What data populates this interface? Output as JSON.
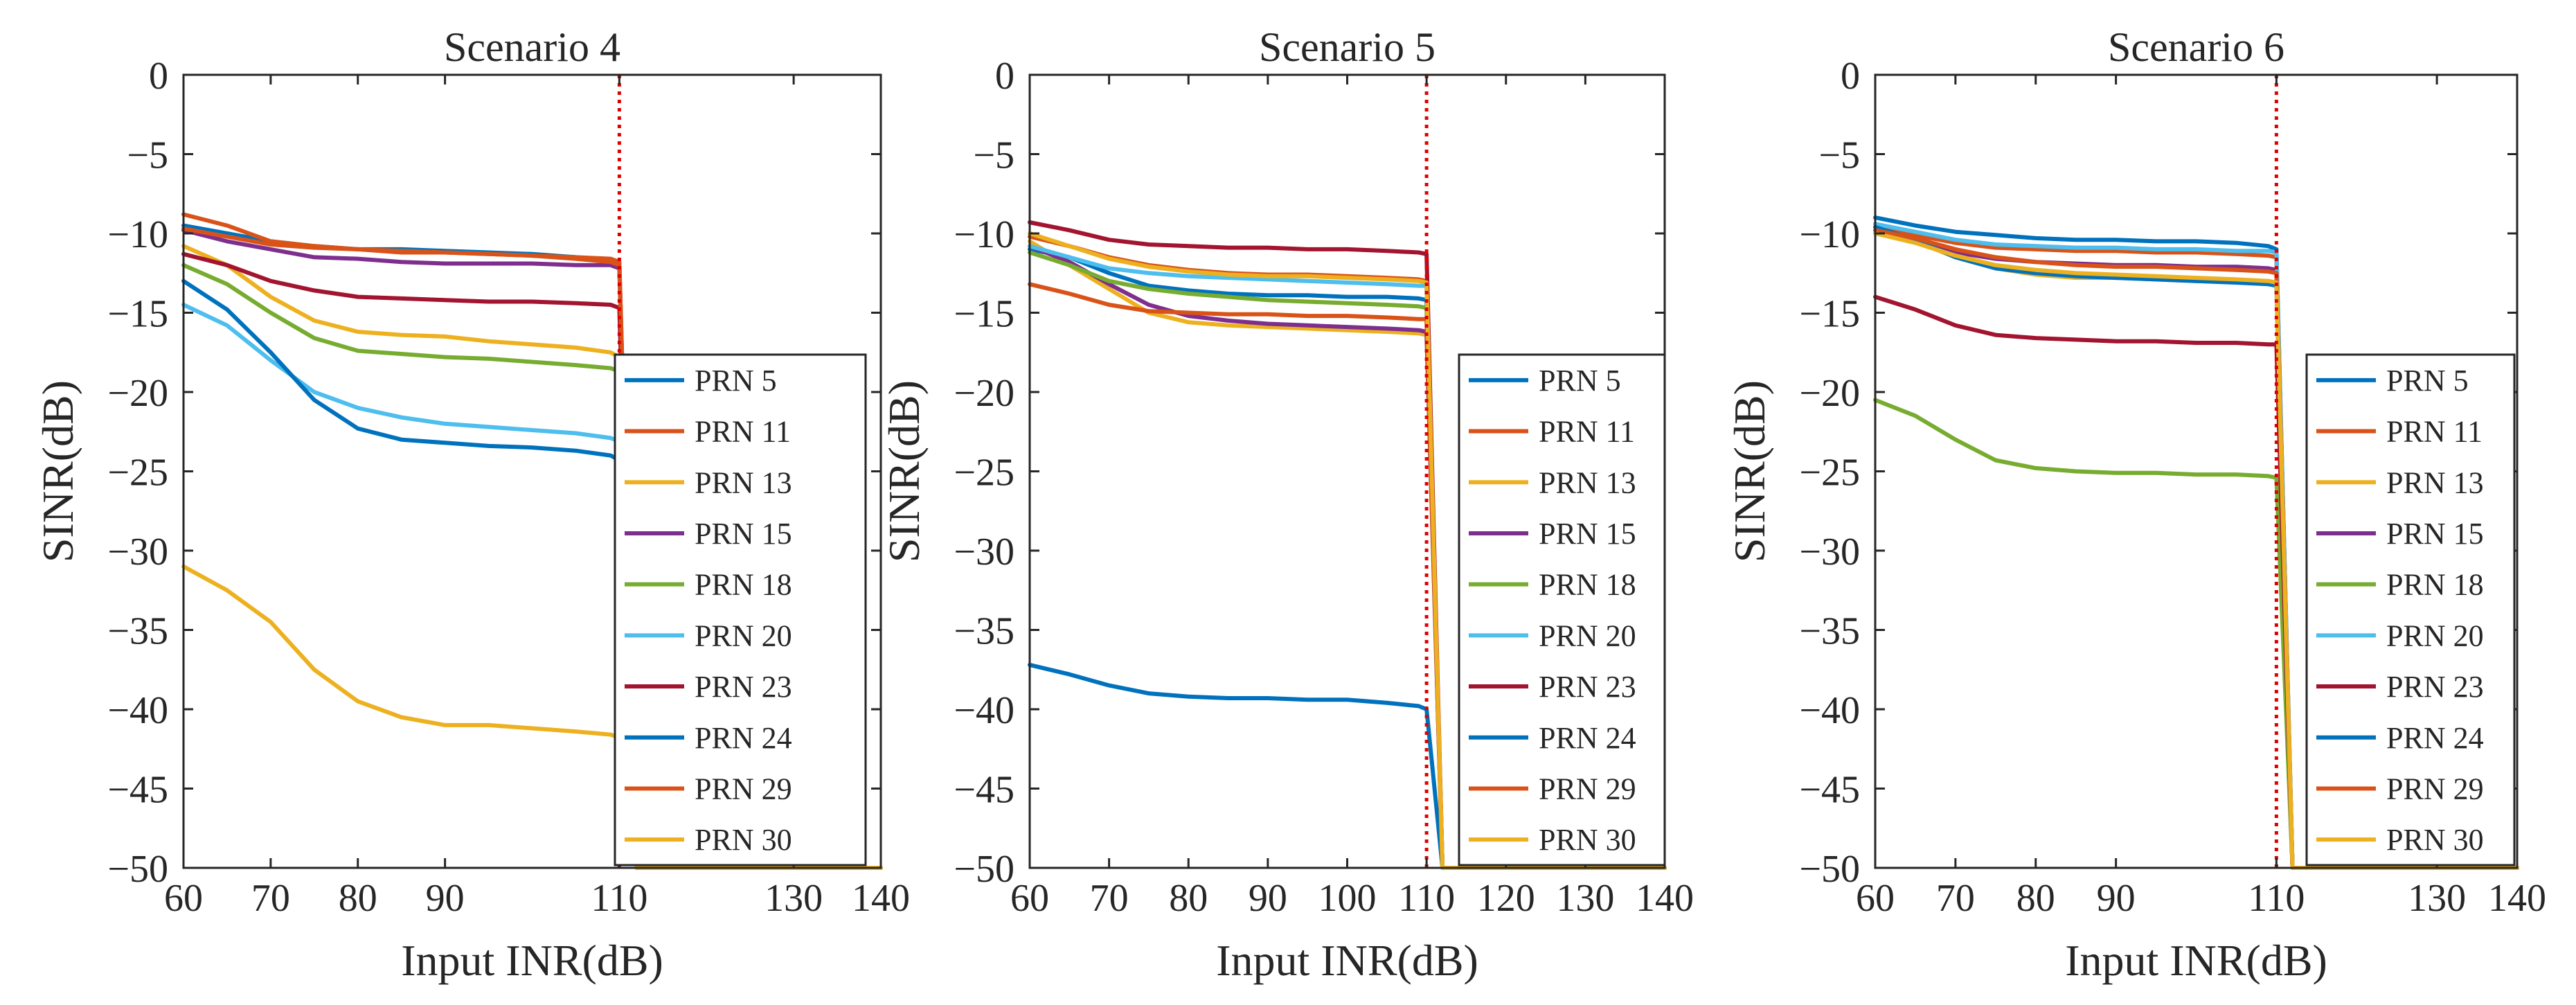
{
  "chart_data": [
    {
      "type": "line",
      "title": "Scenario 4",
      "xlabel": "Input INR(dB)",
      "ylabel": "SINR(dB)",
      "xlim": [
        60,
        140
      ],
      "ylim": [
        -50,
        0
      ],
      "xticks": [
        60,
        70,
        80,
        90,
        110,
        130,
        140
      ],
      "xtick_labels": [
        "60",
        "70",
        "80",
        "90",
        "110",
        "130",
        "140"
      ],
      "yticks": [
        0,
        -5,
        -10,
        -15,
        -20,
        -25,
        -30,
        -35,
        -40,
        -45,
        -50
      ],
      "ytick_labels": [
        "0",
        "−5",
        "−10",
        "−15",
        "−20",
        "−25",
        "−30",
        "−35",
        "−40",
        "−45",
        "−50"
      ],
      "threshold_x": 110,
      "legend_position": "bottom-right",
      "x": [
        60,
        65,
        70,
        75,
        80,
        85,
        90,
        95,
        100,
        105,
        109,
        110,
        112,
        140
      ],
      "series": [
        {
          "name": "PRN 5",
          "color": "#0072BD",
          "values": [
            -9.5,
            -10,
            -10.5,
            -10.8,
            -11,
            -11,
            -11.1,
            -11.2,
            -11.3,
            -11.5,
            -11.8,
            -12,
            -50,
            -50
          ]
        },
        {
          "name": "PRN 11",
          "color": "#D95319",
          "values": [
            -8.8,
            -9.5,
            -10.5,
            -10.8,
            -11,
            -11.2,
            -11.2,
            -11.3,
            -11.4,
            -11.5,
            -11.6,
            -11.8,
            -50,
            -50
          ]
        },
        {
          "name": "PRN 13",
          "color": "#EDB120",
          "values": [
            -10.8,
            -12,
            -14,
            -15.5,
            -16.2,
            -16.4,
            -16.5,
            -16.8,
            -17,
            -17.2,
            -17.5,
            -17.8,
            -50,
            -50
          ]
        },
        {
          "name": "PRN 15",
          "color": "#7E2F8E",
          "values": [
            -9.8,
            -10.5,
            -11,
            -11.5,
            -11.6,
            -11.8,
            -11.9,
            -11.9,
            -11.9,
            -12,
            -12,
            -12.2,
            -50,
            -50
          ]
        },
        {
          "name": "PRN 18",
          "color": "#77AC30",
          "values": [
            -12,
            -13.2,
            -15,
            -16.6,
            -17.4,
            -17.6,
            -17.8,
            -17.9,
            -18.1,
            -18.3,
            -18.5,
            -18.7,
            -50,
            -50
          ]
        },
        {
          "name": "PRN 20",
          "color": "#4DBEEE",
          "values": [
            -14.5,
            -15.8,
            -18,
            -20,
            -21,
            -21.6,
            -22,
            -22.2,
            -22.4,
            -22.6,
            -22.9,
            -23.1,
            -50,
            -50
          ]
        },
        {
          "name": "PRN 23",
          "color": "#A2142F",
          "values": [
            -11.3,
            -12,
            -13,
            -13.6,
            -14,
            -14.1,
            -14.2,
            -14.3,
            -14.3,
            -14.4,
            -14.5,
            -14.7,
            -50,
            -50
          ]
        },
        {
          "name": "PRN 24",
          "color": "#0072BD",
          "values": [
            -13,
            -14.8,
            -17.5,
            -20.5,
            -22.3,
            -23,
            -23.2,
            -23.4,
            -23.5,
            -23.7,
            -24,
            -24.3,
            -50,
            -50
          ]
        },
        {
          "name": "PRN 29",
          "color": "#D95319",
          "values": [
            -9.7,
            -10.2,
            -10.7,
            -10.9,
            -11,
            -11.1,
            -11.2,
            -11.3,
            -11.4,
            -11.6,
            -11.8,
            -12,
            -50,
            -50
          ]
        },
        {
          "name": "PRN 30",
          "color": "#EDB120",
          "values": [
            -31,
            -32.5,
            -34.5,
            -37.5,
            -39.5,
            -40.5,
            -41,
            -41,
            -41.2,
            -41.4,
            -41.6,
            -41.8,
            -50,
            -50
          ]
        }
      ]
    },
    {
      "type": "line",
      "title": "Scenario 5",
      "xlabel": "Input INR(dB)",
      "ylabel": "SINR(dB)",
      "xlim": [
        60,
        140
      ],
      "ylim": [
        -50,
        0
      ],
      "xticks": [
        60,
        70,
        80,
        90,
        100,
        110,
        120,
        130,
        140
      ],
      "xtick_labels": [
        "60",
        "70",
        "80",
        "90",
        "100",
        "110",
        "120",
        "130",
        "140"
      ],
      "yticks": [
        0,
        -5,
        -10,
        -15,
        -20,
        -25,
        -30,
        -35,
        -40,
        -45,
        -50
      ],
      "ytick_labels": [
        "0",
        "−5",
        "−10",
        "−15",
        "−20",
        "−25",
        "−30",
        "−35",
        "−40",
        "−45",
        "−50"
      ],
      "threshold_x": 110,
      "legend_position": "bottom-right",
      "x": [
        60,
        65,
        70,
        75,
        80,
        85,
        90,
        95,
        100,
        105,
        109,
        110,
        112,
        140
      ],
      "series": [
        {
          "name": "PRN 5",
          "color": "#0072BD",
          "values": [
            -11,
            -11.5,
            -12.5,
            -13.3,
            -13.6,
            -13.8,
            -13.9,
            -13.9,
            -14,
            -14,
            -14.1,
            -14.2,
            -50,
            -50
          ]
        },
        {
          "name": "PRN 11",
          "color": "#D95319",
          "values": [
            -10.2,
            -10.8,
            -11.5,
            -12,
            -12.3,
            -12.5,
            -12.6,
            -12.6,
            -12.7,
            -12.8,
            -12.9,
            -13,
            -50,
            -50
          ]
        },
        {
          "name": "PRN 13",
          "color": "#EDB120",
          "values": [
            -10.5,
            -12,
            -13.5,
            -15,
            -15.6,
            -15.8,
            -15.9,
            -16,
            -16.1,
            -16.2,
            -16.3,
            -16.4,
            -50,
            -50
          ]
        },
        {
          "name": "PRN 15",
          "color": "#7E2F8E",
          "values": [
            -10.8,
            -11.8,
            -13.2,
            -14.5,
            -15.2,
            -15.5,
            -15.7,
            -15.8,
            -15.9,
            -16,
            -16.1,
            -16.2,
            -50,
            -50
          ]
        },
        {
          "name": "PRN 18",
          "color": "#77AC30",
          "values": [
            -11.2,
            -12,
            -13,
            -13.5,
            -13.8,
            -14,
            -14.2,
            -14.3,
            -14.4,
            -14.5,
            -14.6,
            -14.7,
            -50,
            -50
          ]
        },
        {
          "name": "PRN 20",
          "color": "#4DBEEE",
          "values": [
            -10.8,
            -11.5,
            -12.2,
            -12.5,
            -12.7,
            -12.8,
            -12.9,
            -13,
            -13.1,
            -13.2,
            -13.3,
            -13.3,
            -50,
            -50
          ]
        },
        {
          "name": "PRN 23",
          "color": "#A2142F",
          "values": [
            -9.3,
            -9.8,
            -10.4,
            -10.7,
            -10.8,
            -10.9,
            -10.9,
            -11,
            -11,
            -11.1,
            -11.2,
            -11.3,
            -50,
            -50
          ]
        },
        {
          "name": "PRN 24",
          "color": "#0072BD",
          "values": [
            -37.2,
            -37.8,
            -38.5,
            -39,
            -39.2,
            -39.3,
            -39.3,
            -39.4,
            -39.4,
            -39.6,
            -39.8,
            -40,
            -50,
            -50
          ]
        },
        {
          "name": "PRN 29",
          "color": "#D95319",
          "values": [
            -13.2,
            -13.8,
            -14.5,
            -14.9,
            -15,
            -15.1,
            -15.1,
            -15.2,
            -15.2,
            -15.3,
            -15.4,
            -15.4,
            -50,
            -50
          ]
        },
        {
          "name": "PRN 30",
          "color": "#EDB120",
          "values": [
            -10,
            -10.8,
            -11.6,
            -12.1,
            -12.4,
            -12.6,
            -12.7,
            -12.7,
            -12.8,
            -12.9,
            -13,
            -13.1,
            -50,
            -50
          ]
        }
      ]
    },
    {
      "type": "line",
      "title": "Scenario 6",
      "xlabel": "Input INR(dB)",
      "ylabel": "SINR(dB)",
      "xlim": [
        60,
        140
      ],
      "ylim": [
        -50,
        0
      ],
      "xticks": [
        60,
        70,
        80,
        90,
        110,
        130,
        140
      ],
      "xtick_labels": [
        "60",
        "70",
        "80",
        "90",
        "110",
        "130",
        "140"
      ],
      "yticks": [
        0,
        -5,
        -10,
        -15,
        -20,
        -25,
        -30,
        -35,
        -40,
        -45,
        -50
      ],
      "ytick_labels": [
        "0",
        "−5",
        "−10",
        "−15",
        "−20",
        "−25",
        "−30",
        "−35",
        "−40",
        "−45",
        "−50"
      ],
      "threshold_x": 110,
      "legend_position": "bottom-right",
      "x": [
        60,
        65,
        70,
        75,
        80,
        85,
        90,
        95,
        100,
        105,
        109,
        110,
        112,
        140
      ],
      "series": [
        {
          "name": "PRN 5",
          "color": "#0072BD",
          "values": [
            -9,
            -9.5,
            -9.9,
            -10.1,
            -10.3,
            -10.4,
            -10.4,
            -10.5,
            -10.5,
            -10.6,
            -10.8,
            -11,
            -50,
            -50
          ]
        },
        {
          "name": "PRN 11",
          "color": "#D95319",
          "values": [
            -9.6,
            -10.1,
            -10.6,
            -10.9,
            -11,
            -11.1,
            -11.1,
            -11.2,
            -11.2,
            -11.3,
            -11.4,
            -11.5,
            -50,
            -50
          ]
        },
        {
          "name": "PRN 13",
          "color": "#EDB120",
          "values": [
            -9.8,
            -10.5,
            -11.5,
            -12.2,
            -12.6,
            -12.8,
            -12.8,
            -12.9,
            -13,
            -13,
            -13.1,
            -13.2,
            -50,
            -50
          ]
        },
        {
          "name": "PRN 15",
          "color": "#7E2F8E",
          "values": [
            -9.8,
            -10.4,
            -11.2,
            -11.6,
            -11.8,
            -11.9,
            -12,
            -12,
            -12.1,
            -12.1,
            -12.2,
            -12.3,
            -50,
            -50
          ]
        },
        {
          "name": "PRN 18",
          "color": "#77AC30",
          "values": [
            -20.5,
            -21.5,
            -23,
            -24.3,
            -24.8,
            -25,
            -25.1,
            -25.1,
            -25.2,
            -25.2,
            -25.3,
            -25.4,
            -50,
            -50
          ]
        },
        {
          "name": "PRN 20",
          "color": "#4DBEEE",
          "values": [
            -9.4,
            -9.9,
            -10.4,
            -10.7,
            -10.8,
            -10.9,
            -10.9,
            -11,
            -11,
            -11.1,
            -11.1,
            -11.2,
            -50,
            -50
          ]
        },
        {
          "name": "PRN 23",
          "color": "#A2142F",
          "values": [
            -14,
            -14.8,
            -15.8,
            -16.4,
            -16.6,
            -16.7,
            -16.8,
            -16.8,
            -16.9,
            -16.9,
            -17,
            -17,
            -50,
            -50
          ]
        },
        {
          "name": "PRN 24",
          "color": "#0072BD",
          "values": [
            -9.6,
            -10.4,
            -11.5,
            -12.2,
            -12.5,
            -12.7,
            -12.8,
            -12.9,
            -13,
            -13.1,
            -13.2,
            -13.3,
            -50,
            -50
          ]
        },
        {
          "name": "PRN 29",
          "color": "#D95319",
          "values": [
            -9.8,
            -10.3,
            -11,
            -11.5,
            -11.8,
            -12,
            -12.1,
            -12.1,
            -12.2,
            -12.3,
            -12.4,
            -12.5,
            -50,
            -50
          ]
        },
        {
          "name": "PRN 30",
          "color": "#EDB120",
          "values": [
            -10,
            -10.6,
            -11.4,
            -12,
            -12.3,
            -12.5,
            -12.6,
            -12.7,
            -12.8,
            -12.9,
            -13,
            -13.1,
            -50,
            -50
          ]
        }
      ]
    }
  ]
}
